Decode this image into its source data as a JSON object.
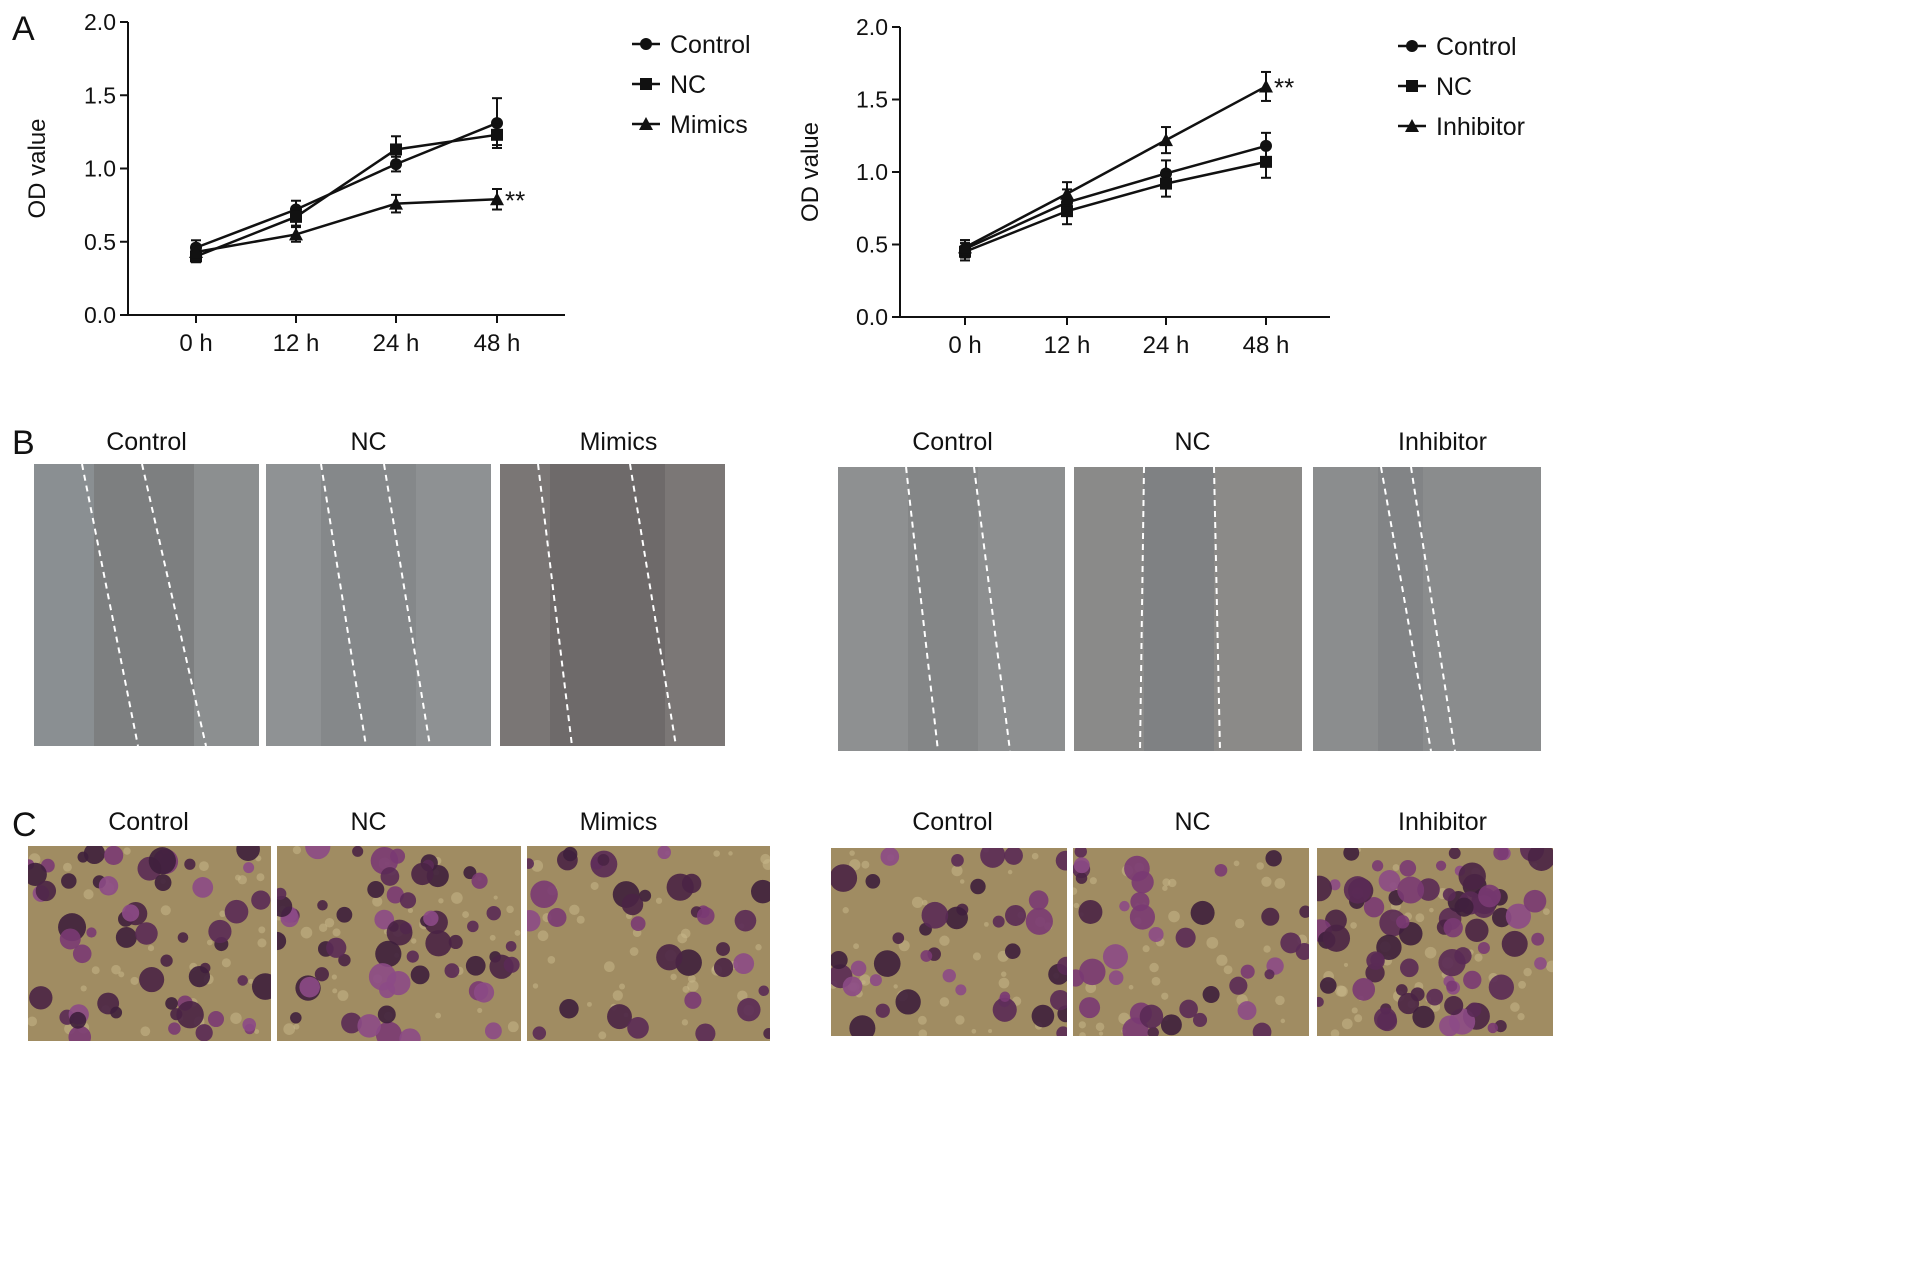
{
  "panels": {
    "a": "A",
    "b": "B",
    "c": "C"
  },
  "chart_data": [
    {
      "type": "line",
      "categories": [
        "0 h",
        "12 h",
        "24 h",
        "48 h"
      ],
      "ylabel": "OD value",
      "xlabel": "",
      "ylim": [
        0,
        2.0
      ],
      "yticks": [
        "0.0",
        "0.5",
        "1.0",
        "1.5",
        "2.0"
      ],
      "legend_position": "right",
      "series": [
        {
          "name": "Control",
          "marker": "circle",
          "values": [
            0.46,
            0.72,
            1.03,
            1.31
          ],
          "errors": [
            0.05,
            0.06,
            0.05,
            0.17
          ]
        },
        {
          "name": "NC",
          "marker": "square",
          "values": [
            0.4,
            0.67,
            1.13,
            1.23
          ],
          "errors": [
            0.04,
            0.06,
            0.09,
            0.07
          ]
        },
        {
          "name": "Mimics",
          "marker": "triangle",
          "values": [
            0.43,
            0.55,
            0.76,
            0.79
          ],
          "errors": [
            0.05,
            0.05,
            0.06,
            0.07
          ]
        }
      ],
      "annotation": {
        "text": "**",
        "series": "Mimics",
        "category": "48 h"
      }
    },
    {
      "type": "line",
      "categories": [
        "0 h",
        "12 h",
        "24 h",
        "48 h"
      ],
      "ylabel": "OD value",
      "xlabel": "",
      "ylim": [
        0,
        2.0
      ],
      "yticks": [
        "0.0",
        "0.5",
        "1.0",
        "1.5",
        "2.0"
      ],
      "legend_position": "right",
      "series": [
        {
          "name": "Control",
          "marker": "circle",
          "values": [
            0.47,
            0.79,
            0.99,
            1.18
          ],
          "errors": [
            0.06,
            0.09,
            0.09,
            0.09
          ]
        },
        {
          "name": "NC",
          "marker": "square",
          "values": [
            0.45,
            0.73,
            0.92,
            1.07
          ],
          "errors": [
            0.06,
            0.09,
            0.09,
            0.11
          ]
        },
        {
          "name": "Inhibitor",
          "marker": "triangle",
          "values": [
            0.48,
            0.85,
            1.22,
            1.59
          ],
          "errors": [
            0.05,
            0.08,
            0.09,
            0.1
          ]
        }
      ],
      "annotation": {
        "text": "**",
        "series": "Inhibitor",
        "category": "48 h"
      }
    }
  ],
  "wound_healing": {
    "left": [
      "Control",
      "NC",
      "Mimics"
    ],
    "right": [
      "Control",
      "NC",
      "Inhibitor"
    ]
  },
  "transwell": {
    "left": [
      "Control",
      "NC",
      "Mimics"
    ],
    "right": [
      "Control",
      "NC",
      "Inhibitor"
    ]
  }
}
